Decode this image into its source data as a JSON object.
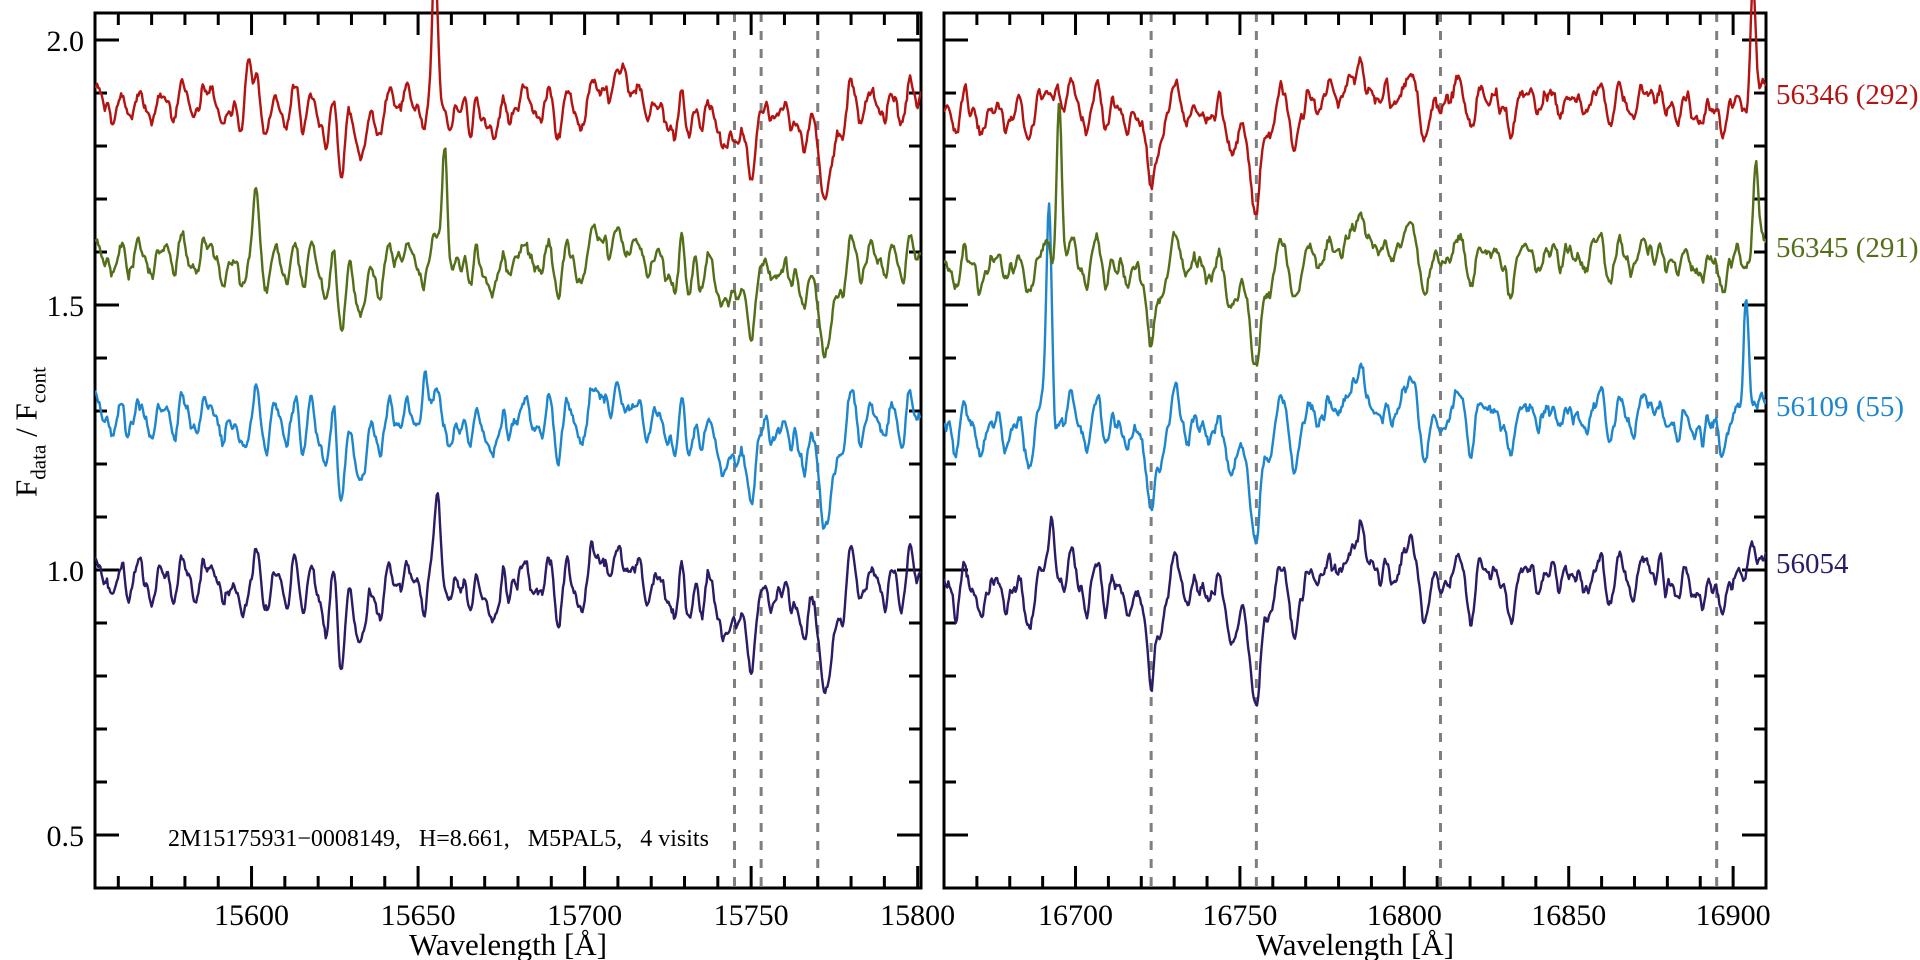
{
  "chart_data": {
    "type": "line",
    "title": "",
    "description": "Normalized APOGEE visit spectra, two wavelength panels, four visits vertically offset",
    "ylabel_parts": [
      {
        "text": "F"
      },
      {
        "text": "data",
        "sub": true
      },
      {
        "text": " / F"
      },
      {
        "text": "cont",
        "sub": true
      }
    ],
    "ylim": [
      0.4,
      2.051
    ],
    "yticks_major": [
      {
        "value": 0.5,
        "label": "0.5"
      },
      {
        "value": 1.0,
        "label": "1.0"
      },
      {
        "value": 1.5,
        "label": "1.5"
      },
      {
        "value": 2.0,
        "label": "2.0"
      }
    ],
    "ytick_minor_step": 0.1,
    "annotation": "2M15175931−0008149,   H=8.661,   M5PAL5,   4 visits",
    "axis_color": "#000000",
    "dashed_line_color": "#7f7f7f",
    "background": "#ffffff",
    "panels": [
      {
        "name": "left",
        "xlabel": "Wavelength [Å]",
        "xlim": [
          15553,
          15801
        ],
        "xticks_major": [
          {
            "value": 15600,
            "label": "15600"
          },
          {
            "value": 15650,
            "label": "15650"
          },
          {
            "value": 15700,
            "label": "15700"
          },
          {
            "value": 15750,
            "label": "15750"
          },
          {
            "value": 15800,
            "label": "15800"
          }
        ],
        "xtick_minor_step": 10,
        "dashed_lines": [
          15745,
          15753,
          15770
        ],
        "seed": 11,
        "features": [
          [
            15557,
            0.04,
            1.3
          ],
          [
            15563,
            0.05,
            1.3
          ],
          [
            15570,
            0.05,
            1.3
          ],
          [
            15577,
            0.04,
            1.2
          ],
          [
            15584,
            0.04,
            1.2
          ],
          [
            15591,
            0.07,
            1.4
          ],
          [
            15597,
            0.09,
            1.4
          ],
          [
            15604,
            0.05,
            1.2
          ],
          [
            15610,
            0.05,
            1.2
          ],
          [
            15616,
            0.06,
            1.2
          ],
          [
            15622,
            0.13,
            1.3
          ],
          [
            15627,
            0.14,
            1.3
          ],
          [
            15633,
            0.15,
            1.5
          ],
          [
            15639,
            0.07,
            1.2
          ],
          [
            15645,
            0.05,
            1.2
          ],
          [
            15651,
            0.06,
            1.2
          ],
          [
            15659,
            0.05,
            1.2
          ],
          [
            15666,
            0.07,
            1.3
          ],
          [
            15672,
            0.06,
            1.3
          ],
          [
            15679,
            0.05,
            1.2
          ],
          [
            15686,
            0.05,
            1.2
          ],
          [
            15692,
            0.05,
            1.3
          ],
          [
            15698,
            0.04,
            1.2
          ],
          [
            15708,
            -0.02,
            7.0
          ],
          [
            15713,
            0.03,
            1.2
          ],
          [
            15719,
            0.05,
            1.3
          ],
          [
            15726,
            0.06,
            1.3
          ],
          [
            15731,
            0.05,
            1.2
          ],
          [
            15735,
            0.08,
            1.3
          ],
          [
            15741,
            0.12,
            1.3
          ],
          [
            15745,
            0.1,
            1.3
          ],
          [
            15750,
            0.2,
            1.5
          ],
          [
            15756,
            0.08,
            1.2
          ],
          [
            15762,
            0.06,
            1.2
          ],
          [
            15766,
            0.12,
            1.3
          ],
          [
            15772,
            0.26,
            1.7
          ],
          [
            15777,
            0.1,
            1.4
          ],
          [
            15783,
            0.06,
            1.3
          ],
          [
            15789,
            0.05,
            1.3
          ],
          [
            15795,
            0.05,
            1.3
          ],
          [
            15800,
            0.04,
            1.2
          ]
        ]
      },
      {
        "name": "right",
        "xlabel": "Wavelength [Å]",
        "xlim": [
          16660,
          16910
        ],
        "xticks_major": [
          {
            "value": 16700,
            "label": "16700"
          },
          {
            "value": 16750,
            "label": "16750"
          },
          {
            "value": 16800,
            "label": "16800"
          },
          {
            "value": 16850,
            "label": "16850"
          },
          {
            "value": 16900,
            "label": "16900"
          }
        ],
        "xtick_minor_step": 10,
        "dashed_lines": [
          16723,
          16755,
          16811,
          16895
        ],
        "seed": 22,
        "features": [
          [
            16663,
            0.05,
            1.3
          ],
          [
            16671,
            0.04,
            1.2
          ],
          [
            16679,
            0.07,
            1.5
          ],
          [
            16686,
            0.08,
            1.5
          ],
          [
            16694,
            0.04,
            1.2
          ],
          [
            16703,
            0.08,
            1.5
          ],
          [
            16709,
            0.06,
            1.3
          ],
          [
            16716,
            0.06,
            1.2
          ],
          [
            16723,
            0.2,
            1.6
          ],
          [
            16727,
            0.1,
            1.2
          ],
          [
            16734,
            0.07,
            1.3
          ],
          [
            16741,
            0.06,
            1.2
          ],
          [
            16748,
            0.14,
            1.8
          ],
          [
            16755,
            0.24,
            1.9
          ],
          [
            16760,
            0.08,
            1.2
          ],
          [
            16767,
            0.13,
            1.4
          ],
          [
            16773,
            0.05,
            1.2
          ],
          [
            16793,
            -0.025,
            12.0
          ],
          [
            16797,
            0.05,
            1.2
          ],
          [
            16806,
            0.06,
            1.3
          ],
          [
            16811,
            0.04,
            1.3
          ],
          [
            16820,
            0.07,
            1.3
          ],
          [
            16826,
            0.05,
            1.2
          ],
          [
            16832,
            0.08,
            1.4
          ],
          [
            16840,
            0.04,
            1.2
          ],
          [
            16848,
            0.05,
            1.3
          ],
          [
            16855,
            0.04,
            1.2
          ],
          [
            16862,
            0.04,
            1.2
          ],
          [
            16869,
            0.06,
            1.3
          ],
          [
            16876,
            0.04,
            1.2
          ],
          [
            16883,
            0.07,
            1.4
          ],
          [
            16890,
            0.05,
            1.2
          ],
          [
            16897,
            0.05,
            1.2
          ],
          [
            16904,
            0.05,
            1.2
          ]
        ]
      }
    ],
    "spectra": [
      {
        "label": "56346 (292)",
        "color": "#b21412",
        "baseline": 1.895,
        "depth_scale": 0.85,
        "seed": 101,
        "spikes": [
          [
            [
              15599,
              0.1
            ],
            [
              15655,
              0.23
            ],
            [
              15712,
              0.07
            ]
          ],
          [
            [
              16694,
              0.07
            ],
            [
              16906,
              0.21
            ]
          ]
        ]
      },
      {
        "label": "56345 (291)",
        "color": "#546f1a",
        "baseline": 1.605,
        "depth_scale": 0.9,
        "seed": 202,
        "spikes": [
          [
            [
              15601,
              0.09
            ],
            [
              15658,
              0.22
            ]
          ],
          [
            [
              16695,
              0.3
            ],
            [
              16907,
              0.14
            ]
          ]
        ]
      },
      {
        "label": "56109 (55)",
        "color": "#1e86cd",
        "baseline": 1.305,
        "depth_scale": 1.0,
        "seed": 303,
        "spikes": [
          [
            [
              15652,
              0.14
            ]
          ],
          [
            [
              16692,
              0.39
            ],
            [
              16904,
              0.25
            ]
          ]
        ]
      },
      {
        "label": "56054",
        "color": "#2d1b66",
        "baseline": 1.0,
        "depth_scale": 1.05,
        "seed": 404,
        "spikes": [
          [
            [
              15656,
              0.11
            ]
          ],
          [
            [
              16693,
              0.14
            ],
            [
              16905,
              0.09
            ]
          ]
        ]
      }
    ]
  }
}
